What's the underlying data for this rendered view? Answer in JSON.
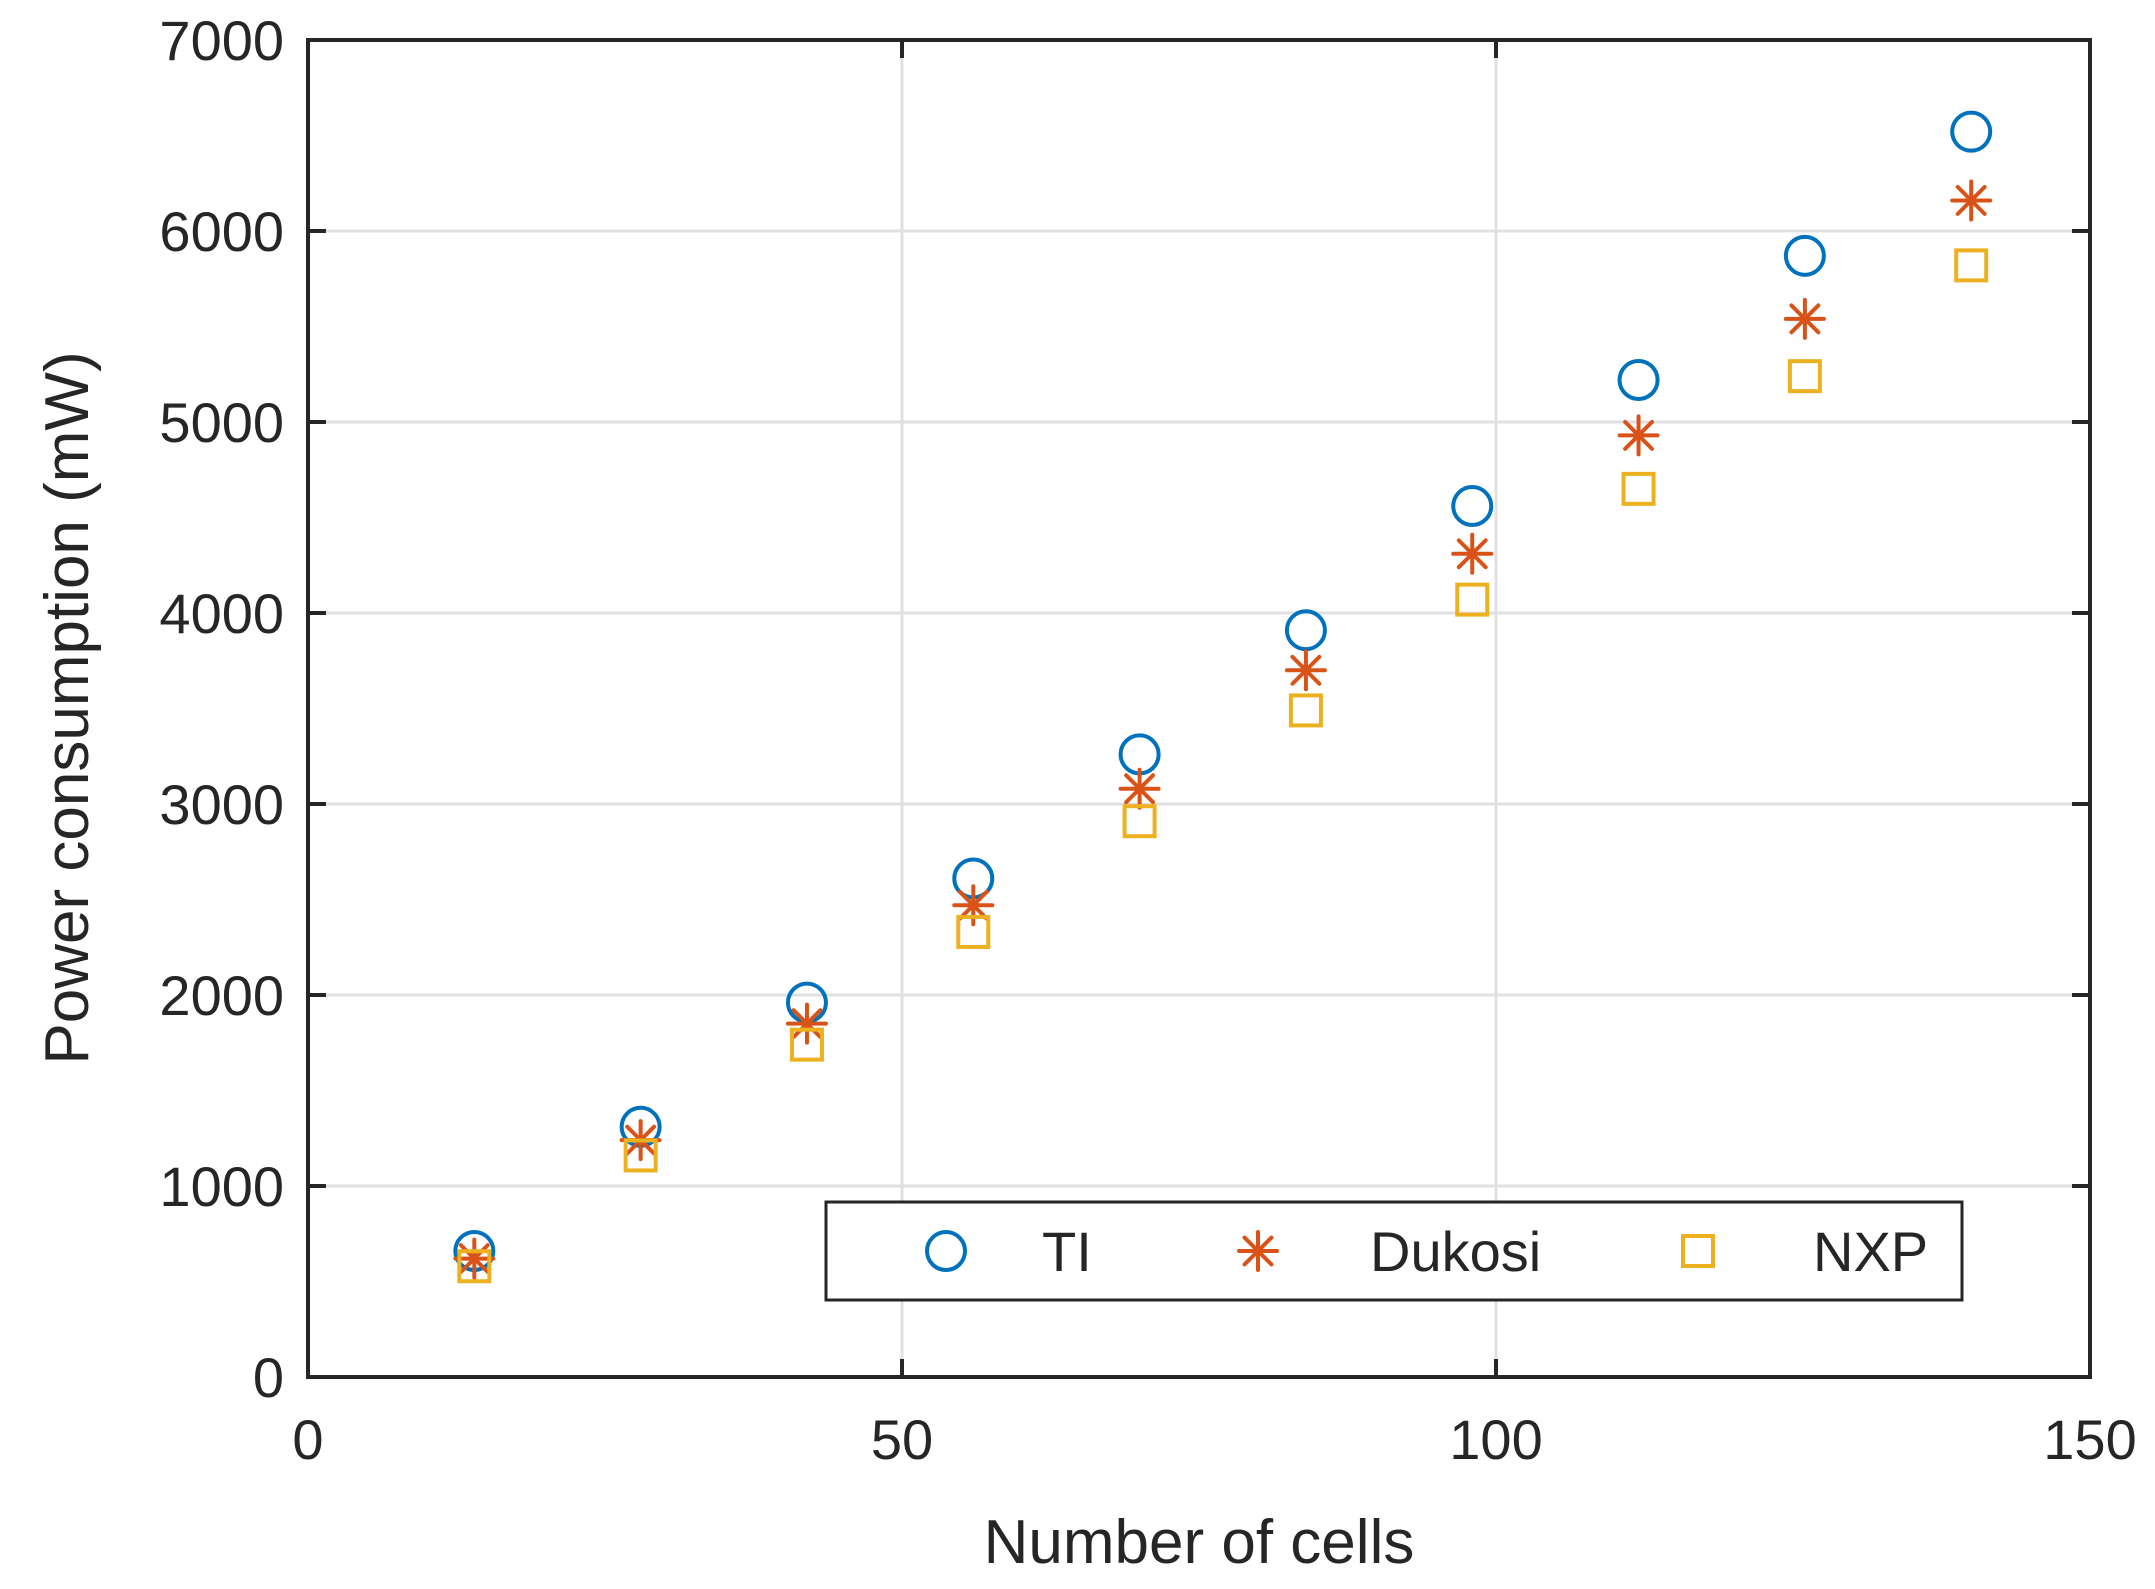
{
  "chart_data": {
    "type": "scatter",
    "title": "",
    "xlabel": "Number of cells",
    "ylabel": "Power consumption (mW)",
    "xlim": [
      0,
      150
    ],
    "ylim": [
      0,
      7000
    ],
    "xticks": [
      0,
      50,
      100,
      150
    ],
    "yticks": [
      0,
      1000,
      2000,
      3000,
      4000,
      5000,
      6000,
      7000
    ],
    "xtick_labels": [
      "0",
      "50",
      "100",
      "150"
    ],
    "ytick_labels": [
      "0",
      "1000",
      "2000",
      "3000",
      "4000",
      "5000",
      "6000",
      "7000"
    ],
    "grid": true,
    "legend_position": "bottom-right",
    "x": [
      14,
      28,
      42,
      56,
      70,
      84,
      98,
      112,
      126,
      140
    ],
    "series": [
      {
        "name": "TI",
        "marker": "circle",
        "color": "#0072BD",
        "values": [
          660,
          1310,
          1960,
          2610,
          3260,
          3910,
          4560,
          5220,
          5870,
          6520
        ]
      },
      {
        "name": "Dukosi",
        "marker": "asterisk",
        "color": "#D95319",
        "values": [
          620,
          1240,
          1850,
          2470,
          3080,
          3700,
          4310,
          4930,
          5540,
          6160
        ]
      },
      {
        "name": "NXP",
        "marker": "square",
        "color": "#EDB120",
        "values": [
          580,
          1160,
          1740,
          2330,
          2910,
          3490,
          4070,
          4650,
          5240,
          5820
        ]
      }
    ]
  }
}
